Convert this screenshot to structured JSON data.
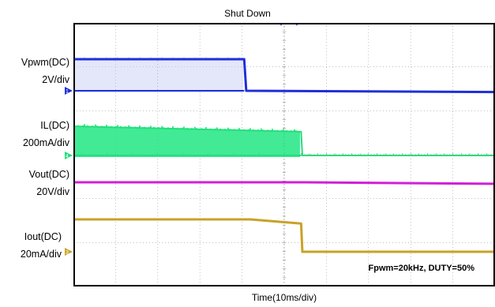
{
  "chart_data": {
    "type": "line",
    "title": "Shut Down",
    "xlabel": "Time(10ms/div)",
    "annotation": "Fpwm=20kHz, DUTY=50%",
    "x_unit": "ms",
    "x_range": [
      0,
      100
    ],
    "grid": true,
    "grid_divisions": {
      "x": 10,
      "y": 6
    },
    "background": "#ffffff",
    "channels": [
      {
        "name": "Vpwm(DC)",
        "scale": "2V/div",
        "marker": "1",
        "color": "#1f2fd8",
        "fill_color": "#c9cdf5",
        "points": [
          [
            0,
            5.0
          ],
          [
            40.5,
            5.0
          ],
          [
            41.0,
            0.0
          ],
          [
            100,
            -0.2
          ]
        ],
        "pwm_until": 40.5
      },
      {
        "name": "IL(DC)",
        "scale": "200mA/div",
        "marker": "4",
        "color": "#22e07a",
        "fill_color": "#2ee88a",
        "points": [
          [
            0,
            0.8
          ],
          [
            54.0,
            0.65
          ],
          [
            54.3,
            0.0
          ],
          [
            100,
            0.0
          ]
        ],
        "pwm_until": 54.0
      },
      {
        "name": "Vout(DC)",
        "scale": "20V/div",
        "marker": "",
        "color": "#d020d8",
        "points": [
          [
            0,
            40
          ],
          [
            55,
            40
          ],
          [
            100,
            38
          ]
        ]
      },
      {
        "name": "Iout(DC)",
        "scale": "20mA/div",
        "marker": "3",
        "color": "#c9a227",
        "points": [
          [
            0,
            46
          ],
          [
            42,
            46
          ],
          [
            54,
            40
          ],
          [
            54.3,
            0
          ],
          [
            100,
            0
          ]
        ]
      }
    ]
  }
}
